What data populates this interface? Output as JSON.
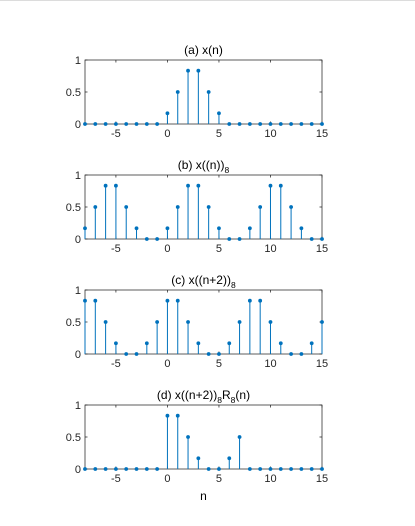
{
  "window": {
    "background": "#ffffff"
  },
  "colors": {
    "stem": "#0072BD",
    "axis": "#262626",
    "title": "#000000"
  },
  "xlabel": "n",
  "chart_data": [
    {
      "type": "stem",
      "title_main": "(a) x(n)",
      "title_sub": "",
      "title_tail": "",
      "x": [
        -8,
        -7,
        -6,
        -5,
        -4,
        -3,
        -2,
        -1,
        0,
        1,
        2,
        3,
        4,
        5,
        6,
        7,
        8,
        9,
        10,
        11,
        12,
        13,
        14,
        15
      ],
      "values": [
        0,
        0,
        0,
        0,
        0,
        0,
        0,
        0,
        0.167,
        0.5,
        0.833,
        0.833,
        0.5,
        0.167,
        0,
        0,
        0,
        0,
        0,
        0,
        0,
        0,
        0,
        0
      ],
      "xlim": [
        -8,
        15
      ],
      "ylim": [
        0,
        1
      ],
      "xticks": [
        -5,
        0,
        5,
        10,
        15
      ],
      "xtick_labels": [
        "-5",
        "0",
        "5",
        "10",
        "15"
      ],
      "yticks": [
        0,
        0.5,
        1
      ],
      "ytick_labels": [
        "0",
        "0.5",
        "1"
      ]
    },
    {
      "type": "stem",
      "title_main": "(b) x((n))",
      "title_sub": "8",
      "title_tail": "",
      "x": [
        -8,
        -7,
        -6,
        -5,
        -4,
        -3,
        -2,
        -1,
        0,
        1,
        2,
        3,
        4,
        5,
        6,
        7,
        8,
        9,
        10,
        11,
        12,
        13,
        14,
        15
      ],
      "values": [
        0.167,
        0.5,
        0.833,
        0.833,
        0.5,
        0.167,
        0,
        0,
        0.167,
        0.5,
        0.833,
        0.833,
        0.5,
        0.167,
        0,
        0,
        0.167,
        0.5,
        0.833,
        0.833,
        0.5,
        0.167,
        0,
        0
      ],
      "xlim": [
        -8,
        15
      ],
      "ylim": [
        0,
        1
      ],
      "xticks": [
        -5,
        0,
        5,
        10,
        15
      ],
      "xtick_labels": [
        "-5",
        "0",
        "5",
        "10",
        "15"
      ],
      "yticks": [
        0,
        0.5,
        1
      ],
      "ytick_labels": [
        "0",
        "0.5",
        "1"
      ]
    },
    {
      "type": "stem",
      "title_main": "(c) x((n+2))",
      "title_sub": "8",
      "title_tail": "",
      "x": [
        -8,
        -7,
        -6,
        -5,
        -4,
        -3,
        -2,
        -1,
        0,
        1,
        2,
        3,
        4,
        5,
        6,
        7,
        8,
        9,
        10,
        11,
        12,
        13,
        14,
        15
      ],
      "values": [
        0.833,
        0.833,
        0.5,
        0.167,
        0,
        0,
        0.167,
        0.5,
        0.833,
        0.833,
        0.5,
        0.167,
        0,
        0,
        0.167,
        0.5,
        0.833,
        0.833,
        0.5,
        0.167,
        0,
        0,
        0.167,
        0.5
      ],
      "xlim": [
        -8,
        15
      ],
      "ylim": [
        0,
        1
      ],
      "xticks": [
        -5,
        0,
        5,
        10,
        15
      ],
      "xtick_labels": [
        "-5",
        "0",
        "5",
        "10",
        "15"
      ],
      "yticks": [
        0,
        0.5,
        1
      ],
      "ytick_labels": [
        "0",
        "0.5",
        "1"
      ]
    },
    {
      "type": "stem",
      "title_main": "(d) x((n+2))",
      "title_sub": "8",
      "title_tail": "R",
      "title_sub2": "8",
      "title_end": "(n)",
      "x": [
        -8,
        -7,
        -6,
        -5,
        -4,
        -3,
        -2,
        -1,
        0,
        1,
        2,
        3,
        4,
        5,
        6,
        7,
        8,
        9,
        10,
        11,
        12,
        13,
        14,
        15
      ],
      "values": [
        0,
        0,
        0,
        0,
        0,
        0,
        0,
        0,
        0.833,
        0.833,
        0.5,
        0.167,
        0,
        0,
        0.167,
        0.5,
        0,
        0,
        0,
        0,
        0,
        0,
        0,
        0
      ],
      "xlim": [
        -8,
        15
      ],
      "ylim": [
        0,
        1
      ],
      "xticks": [
        -5,
        0,
        5,
        10,
        15
      ],
      "xtick_labels": [
        "-5",
        "0",
        "5",
        "10",
        "15"
      ],
      "yticks": [
        0,
        0.5,
        1
      ],
      "ytick_labels": [
        "0",
        "0.5",
        "1"
      ]
    }
  ]
}
